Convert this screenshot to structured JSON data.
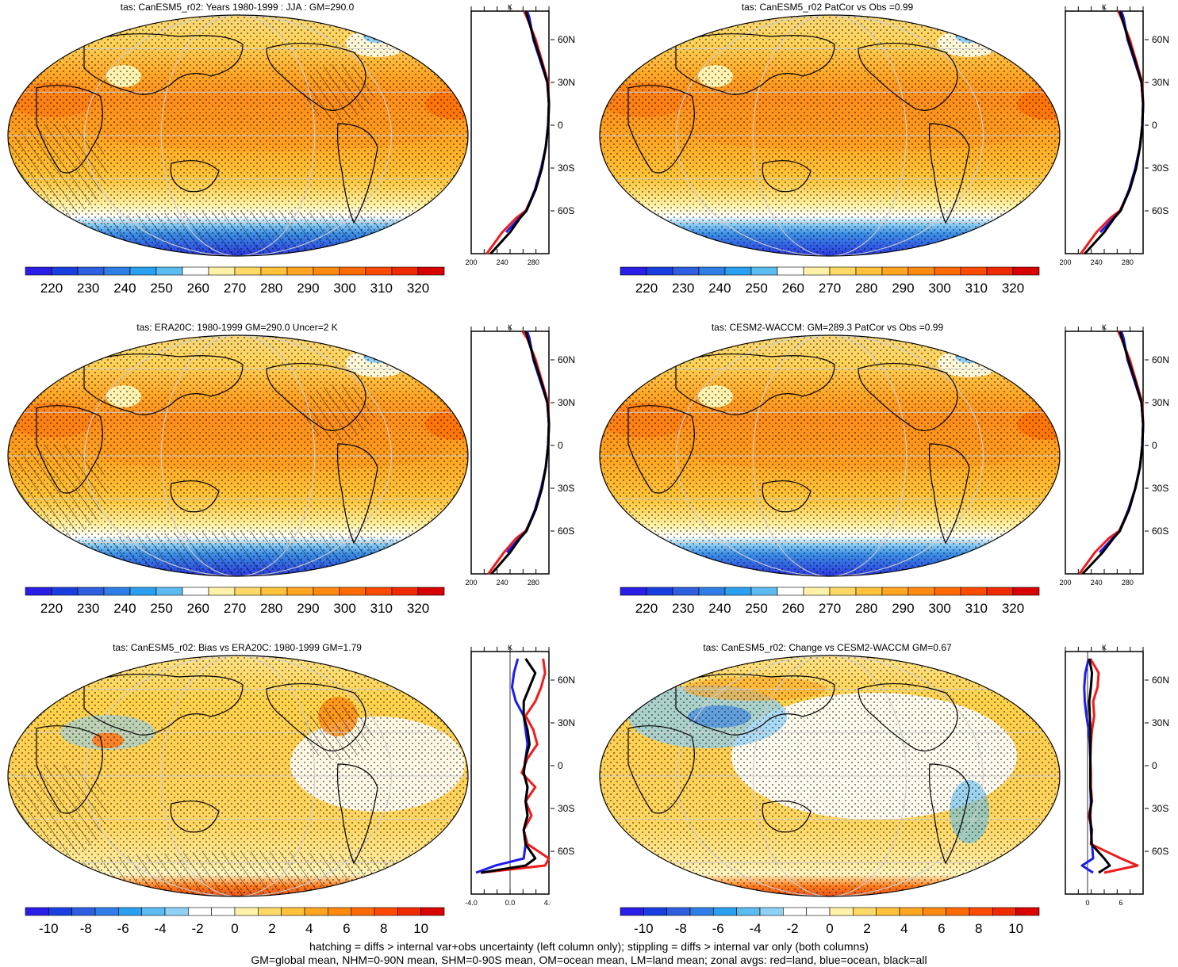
{
  "panels": [
    {
      "title": "tas: CanESM5_r02: Years 1980-1999 : JJA : GM=290.0",
      "scale": "abs",
      "hatch": true,
      "zonal_ticks": [
        "200",
        "240",
        "280"
      ],
      "zonal_unit": "K",
      "lat_labels": [
        "60N",
        "30N",
        "0",
        "30S",
        "60S"
      ]
    },
    {
      "title": "tas: CanESM5_r02 PatCor vs Obs =0.99",
      "scale": "abs",
      "hatch": false,
      "zonal_ticks": [
        "200",
        "240",
        "280"
      ],
      "zonal_unit": "K",
      "lat_labels": [
        "60N",
        "30N",
        "0",
        "30S",
        "60S"
      ]
    },
    {
      "title": "tas: ERA20C: 1980-1999 GM=290.0 Uncer=2 K",
      "scale": "abs",
      "hatch": true,
      "zonal_ticks": [
        "200",
        "240",
        "280"
      ],
      "zonal_unit": "K",
      "lat_labels": [
        "60N",
        "30N",
        "0",
        "30S",
        "60S"
      ]
    },
    {
      "title": "tas: CESM2-WACCM: GM=289.3 PatCor vs Obs =0.99",
      "scale": "abs",
      "hatch": false,
      "zonal_ticks": [
        "200",
        "240",
        "280"
      ],
      "zonal_unit": "K",
      "lat_labels": [
        "60N",
        "30N",
        "0",
        "30S",
        "60S"
      ]
    },
    {
      "title": "tas: CanESM5_r02: Bias vs ERA20C: 1980-1999 GM=1.79",
      "scale": "diff",
      "hatch": true,
      "zonal_ticks": [
        "-4.0",
        "0.0",
        "4.0"
      ],
      "zonal_unit": "K",
      "lat_labels": [
        "60N",
        "30N",
        "0",
        "30S",
        "60S"
      ]
    },
    {
      "title": "tas: CanESM5_r02: Change vs CESM2-WACCM GM=0.67",
      "scale": "diff",
      "hatch": false,
      "zonal_ticks": [
        "0",
        "6"
      ],
      "zonal_unit": "K",
      "lat_labels": [
        "60N",
        "30N",
        "0",
        "30S",
        "60S"
      ]
    }
  ],
  "colorbars": {
    "abs": {
      "labels": [
        "220",
        "230",
        "240",
        "250",
        "260",
        "270",
        "280",
        "290",
        "300",
        "310",
        "320"
      ],
      "colors": [
        "#2a1ee6",
        "#1a3fe0",
        "#2f5fe0",
        "#2f7de6",
        "#2aa0f0",
        "#5cbcf2",
        "#ffffff",
        "#fff2a8",
        "#ffd966",
        "#ffc23a",
        "#ffa520",
        "#ff8a10",
        "#ff6a00",
        "#ff4a00",
        "#f02a00",
        "#d80000"
      ]
    },
    "diff": {
      "labels": [
        "-10",
        "-8",
        "-6",
        "-4",
        "-2",
        "0",
        "2",
        "4",
        "6",
        "8",
        "10"
      ],
      "colors": [
        "#2a1ee6",
        "#1a3fe0",
        "#2f5fe0",
        "#2f7de6",
        "#2aa0f0",
        "#5cbcf2",
        "#8fd0f5",
        "#ffffff",
        "#ffffff",
        "#fff2a8",
        "#ffd966",
        "#ffc23a",
        "#ffa520",
        "#ff8a10",
        "#ff6a00",
        "#ff4a00",
        "#f02a00",
        "#d80000"
      ]
    }
  },
  "chart_data": [
    {
      "type": "heatmap",
      "title": "tas: CanESM5_r02: Years 1980-1999 : JJA : GM=290.0",
      "zonal_mean": {
        "unit": "K",
        "series": [
          {
            "color": "red",
            "lat": [
              -90,
              -75,
              -65,
              -60,
              -45,
              -30,
              -15,
              0,
              15,
              30,
              45,
              60,
              75,
              80
            ],
            "values": [
              220,
              240,
              258,
              270,
              283,
              291,
              296,
              299,
              300,
              299,
              291,
              283,
              272,
              268
            ]
          },
          {
            "color": "blue",
            "lat": [
              -75,
              -65,
              -60,
              -45,
              -30,
              -15,
              0,
              15,
              30,
              45,
              60,
              75,
              80
            ],
            "values": [
              245,
              262,
              271,
              282,
              290,
              296,
              299,
              300,
              298,
              289,
              280,
              275,
              272
            ]
          },
          {
            "color": "black",
            "lat": [
              -90,
              -75,
              -65,
              -60,
              -45,
              -30,
              -15,
              0,
              15,
              30,
              45,
              60,
              75,
              80
            ],
            "values": [
              225,
              250,
              263,
              271,
              283,
              291,
              296,
              299,
              300,
              298,
              290,
              281,
              273,
              270
            ]
          }
        ]
      }
    },
    {
      "type": "heatmap",
      "title": "tas: CanESM5_r02 PatCor vs Obs =0.99",
      "zonal_mean": {
        "unit": "K",
        "series": [
          {
            "color": "red",
            "lat": [
              -90,
              -75,
              -65,
              -60,
              -45,
              -30,
              -15,
              0,
              15,
              30,
              45,
              60,
              75,
              80
            ],
            "values": [
              220,
              240,
              258,
              270,
              283,
              291,
              296,
              299,
              300,
              299,
              291,
              283,
              272,
              268
            ]
          },
          {
            "color": "blue",
            "lat": [
              -75,
              -65,
              -60,
              -45,
              -30,
              -15,
              0,
              15,
              30,
              45,
              60,
              75,
              80
            ],
            "values": [
              245,
              262,
              271,
              282,
              290,
              296,
              299,
              300,
              298,
              289,
              280,
              275,
              272
            ]
          },
          {
            "color": "black",
            "lat": [
              -90,
              -75,
              -65,
              -60,
              -45,
              -30,
              -15,
              0,
              15,
              30,
              45,
              60,
              75,
              80
            ],
            "values": [
              225,
              250,
              263,
              271,
              283,
              291,
              296,
              299,
              300,
              298,
              290,
              281,
              273,
              270
            ]
          }
        ]
      }
    },
    {
      "type": "heatmap",
      "title": "tas: ERA20C: 1980-1999 GM=290.0 Uncer=2 K",
      "zonal_mean": {
        "unit": "K",
        "series": [
          {
            "color": "red",
            "lat": [
              -90,
              -75,
              -65,
              -60,
              -45,
              -30,
              -15,
              0,
              15,
              30,
              45,
              60,
              75,
              80
            ],
            "values": [
              222,
              242,
              258,
              270,
              283,
              291,
              296,
              299,
              300,
              299,
              291,
              283,
              272,
              266
            ]
          },
          {
            "color": "blue",
            "lat": [
              -75,
              -65,
              -60,
              -45,
              -30,
              -15,
              0,
              15,
              30,
              45,
              60,
              75,
              80
            ],
            "values": [
              246,
              262,
              271,
              282,
              290,
              296,
              299,
              300,
              298,
              289,
              280,
              275,
              272
            ]
          },
          {
            "color": "black",
            "lat": [
              -90,
              -75,
              -65,
              -60,
              -45,
              -30,
              -15,
              0,
              15,
              30,
              45,
              60,
              75,
              80
            ],
            "values": [
              226,
              250,
              263,
              271,
              283,
              291,
              296,
              299,
              300,
              298,
              290,
              281,
              273,
              270
            ]
          }
        ]
      }
    },
    {
      "type": "heatmap",
      "title": "tas: CESM2-WACCM: GM=289.3 PatCor vs Obs =0.99",
      "zonal_mean": {
        "unit": "K",
        "series": [
          {
            "color": "red",
            "lat": [
              -90,
              -75,
              -65,
              -60,
              -45,
              -30,
              -15,
              0,
              15,
              30,
              45,
              60,
              75,
              80
            ],
            "values": [
              218,
              238,
              256,
              269,
              282,
              290,
              296,
              299,
              300,
              299,
              291,
              283,
              272,
              268
            ]
          },
          {
            "color": "blue",
            "lat": [
              -75,
              -65,
              -60,
              -45,
              -30,
              -15,
              0,
              15,
              30,
              45,
              60,
              75,
              80
            ],
            "values": [
              244,
              261,
              270,
              281,
              290,
              296,
              299,
              300,
              298,
              289,
              280,
              275,
              272
            ]
          },
          {
            "color": "black",
            "lat": [
              -90,
              -75,
              -65,
              -60,
              -45,
              -30,
              -15,
              0,
              15,
              30,
              45,
              60,
              75,
              80
            ],
            "values": [
              222,
              248,
              262,
              270,
              282,
              290,
              296,
              299,
              300,
              298,
              290,
              281,
              273,
              270
            ]
          }
        ]
      }
    },
    {
      "type": "heatmap",
      "title": "tas: CanESM5_r02: Bias vs ERA20C: 1980-1999 GM=1.79",
      "zonal_mean": {
        "unit": "K",
        "series": [
          {
            "color": "red",
            "lat": [
              -75,
              -70,
              -65,
              -55,
              -45,
              -35,
              -25,
              -15,
              -5,
              5,
              15,
              25,
              35,
              45,
              55,
              65,
              75
            ],
            "values": [
              -3.0,
              3.6,
              4.0,
              1.8,
              1.4,
              2.2,
              1.6,
              2.6,
              1.2,
              1.8,
              2.8,
              2.4,
              1.6,
              2.6,
              3.2,
              3.6,
              3.4
            ]
          },
          {
            "color": "blue",
            "lat": [
              -75,
              -70,
              -65,
              -55,
              -45,
              -35,
              -25,
              -15,
              -5,
              5,
              15,
              25,
              35,
              45,
              55,
              65,
              75
            ],
            "values": [
              -3.5,
              -1.5,
              1.4,
              1.6,
              1.4,
              1.8,
              1.6,
              1.8,
              1.4,
              1.6,
              1.8,
              1.6,
              1.4,
              0.6,
              0.2,
              0.4,
              0.8
            ]
          },
          {
            "color": "black",
            "lat": [
              -75,
              -70,
              -65,
              -55,
              -45,
              -35,
              -25,
              -15,
              -5,
              5,
              15,
              25,
              35,
              45,
              55,
              65,
              75
            ],
            "values": [
              -3.0,
              1.6,
              2.6,
              1.6,
              1.4,
              1.8,
              1.6,
              1.8,
              1.4,
              1.6,
              2.0,
              1.8,
              1.4,
              1.4,
              2.0,
              2.6,
              1.6
            ]
          }
        ]
      }
    },
    {
      "type": "heatmap",
      "title": "tas: CanESM5_r02: Change vs CESM2-WACCM GM=0.67",
      "zonal_mean": {
        "unit": "K",
        "series": [
          {
            "color": "red",
            "lat": [
              -75,
              -70,
              -65,
              -55,
              -45,
              -35,
              -25,
              -15,
              -5,
              5,
              15,
              25,
              35,
              45,
              55,
              65,
              75
            ],
            "values": [
              3,
              9,
              6,
              0.6,
              0.8,
              0.2,
              0.8,
              0.6,
              0.6,
              0.5,
              0.6,
              0.8,
              1.2,
              1.0,
              1.8,
              2.0,
              0.5
            ]
          },
          {
            "color": "blue",
            "lat": [
              -75,
              -70,
              -65,
              -55,
              -45,
              -35,
              -25,
              -15,
              -5,
              5,
              15,
              25,
              35,
              45,
              55,
              65,
              75
            ],
            "values": [
              1,
              -1,
              1,
              0.8,
              0.6,
              0.5,
              0.6,
              0.5,
              0.5,
              0.5,
              0.4,
              0.2,
              -0.2,
              -0.5,
              -0.6,
              -0.4,
              0.2
            ]
          },
          {
            "color": "black",
            "lat": [
              -75,
              -70,
              -65,
              -55,
              -45,
              -35,
              -25,
              -15,
              -5,
              5,
              15,
              25,
              35,
              45,
              55,
              65,
              75
            ],
            "values": [
              2,
              4,
              3,
              0.7,
              0.7,
              0.4,
              0.7,
              0.5,
              0.5,
              0.5,
              0.5,
              0.5,
              0.4,
              0.3,
              0.6,
              0.8,
              0.3
            ]
          }
        ]
      }
    }
  ],
  "caption": {
    "line1": "hatching = diffs > internal var+obs uncertainty (left column only); stippling = diffs > internal var only (both columns)",
    "line2": "GM=global mean, NHM=0-90N mean, SHM=0-90S mean, OM=ocean mean, LM=land mean; zonal avgs: red=land, blue=ocean, black=all"
  }
}
